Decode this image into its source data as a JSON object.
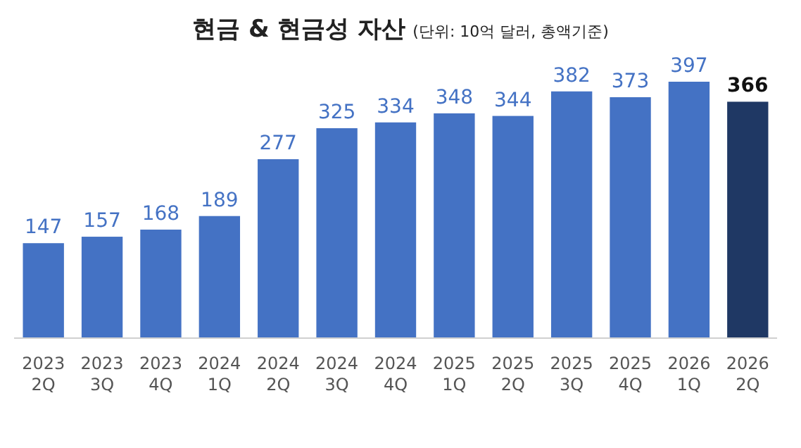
{
  "chart_data": {
    "type": "bar",
    "title": "현금 & 현금성 자산",
    "subtitle": "(단위: 10억 달러, 총액기준)",
    "categories": [
      "2023\n2Q",
      "2023\n3Q",
      "2023\n4Q",
      "2024\n1Q",
      "2024\n2Q",
      "2024\n3Q",
      "2024\n4Q",
      "2025\n1Q",
      "2025\n2Q",
      "2025\n3Q",
      "2025\n4Q",
      "2026\n1Q",
      "2026\n2Q"
    ],
    "values": [
      147,
      157,
      168,
      189,
      277,
      325,
      334,
      348,
      344,
      382,
      373,
      397,
      366
    ],
    "colors": [
      "#4472c4",
      "#4472c4",
      "#4472c4",
      "#4472c4",
      "#4472c4",
      "#4472c4",
      "#4472c4",
      "#4472c4",
      "#4472c4",
      "#4472c4",
      "#4472c4",
      "#4472c4",
      "#1f3864"
    ],
    "data_labels": true
  }
}
